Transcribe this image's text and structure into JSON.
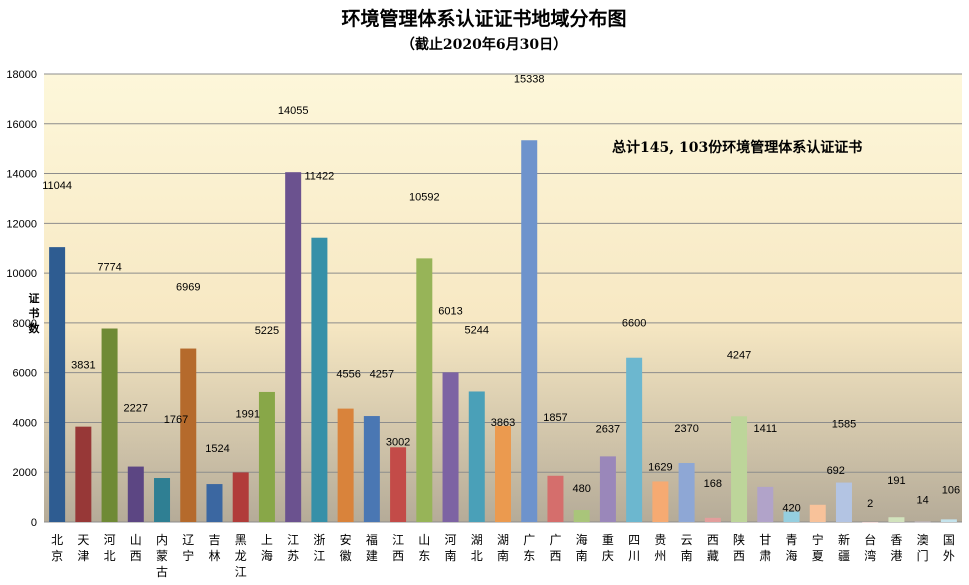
{
  "chart_data": {
    "type": "bar",
    "title": "环境管理体系认证证书地域分布图",
    "subtitle": "（截止2020年6月30日）",
    "ylabel": "证书数",
    "xlabel": "",
    "annotation": "总计145, 103份环境管理体系认证证书",
    "ylim": [
      0,
      18000
    ],
    "yticks": [
      0,
      2000,
      4000,
      6000,
      8000,
      10000,
      12000,
      14000,
      16000,
      18000
    ],
    "grid": true,
    "categories": [
      "北京",
      "天津",
      "河北",
      "山西",
      "内蒙古",
      "辽宁",
      "吉林",
      "黑龙江",
      "上海",
      "江苏",
      "浙江",
      "安徽",
      "福建",
      "江西",
      "山东",
      "河南",
      "湖北",
      "湖南",
      "广东",
      "广西",
      "海南",
      "重庆",
      "四川",
      "贵州",
      "云南",
      "西藏",
      "陕西",
      "甘肃",
      "青海",
      "宁夏",
      "新疆",
      "台湾",
      "香港",
      "澳门",
      "国外"
    ],
    "values": [
      11044,
      3831,
      7774,
      2227,
      1767,
      6969,
      1524,
      1991,
      5225,
      14055,
      11422,
      4556,
      4257,
      3002,
      10592,
      6013,
      5244,
      3863,
      15338,
      1857,
      480,
      2637,
      6600,
      1629,
      2370,
      168,
      4247,
      1411,
      420,
      692,
      1585,
      2,
      191,
      14,
      106
    ],
    "colors": [
      "#2e5c91",
      "#973837",
      "#6f8a35",
      "#5c4683",
      "#2f7f93",
      "#b56a2c",
      "#3b67a1",
      "#b13c3a",
      "#88a748",
      "#6b528f",
      "#3690a8",
      "#d9833b",
      "#4a77b3",
      "#c34b48",
      "#97b458",
      "#7d63a3",
      "#4aa0b8",
      "#eb9a4f",
      "#6e93cc",
      "#d56e6c",
      "#a9c57a",
      "#9a87ba",
      "#6cb7cf",
      "#f6aa72",
      "#8ea7d5",
      "#e39e9c",
      "#bdd59a",
      "#b1a3c9",
      "#95cfe0",
      "#f8c29a",
      "#b3c4e3",
      "#edc1bf",
      "#d2e3bd",
      "#cec3dd",
      "#c4e3ec"
    ]
  }
}
